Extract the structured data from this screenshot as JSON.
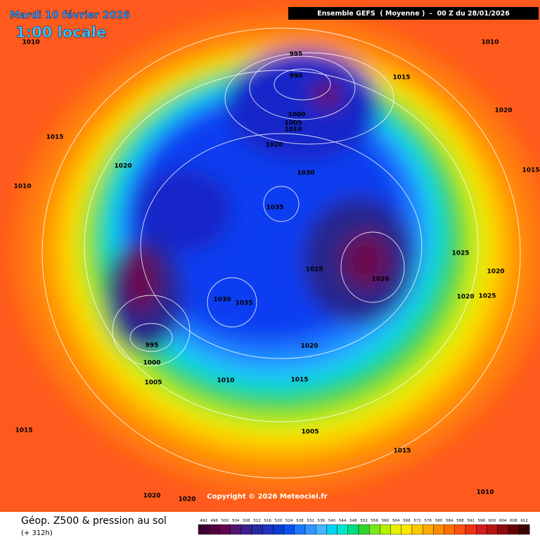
{
  "header": {
    "date": "Mardi 10 février 2026",
    "time": "1:00 locale",
    "model": "Ensemble GEFS  ( Moyenne )  -  00 Z du 28/01/2026"
  },
  "isobar_labels": [
    1010,
    995,
    990,
    1015,
    1010,
    1020,
    1000,
    1005,
    1010,
    1015,
    1020,
    1020,
    1030,
    1015,
    1010,
    1035,
    1025,
    1025,
    1020,
    1020,
    1020,
    1025,
    1030,
    1035,
    995,
    1020,
    1000,
    1005,
    1010,
    1015,
    1005,
    1015,
    1015,
    1020,
    1020,
    1010
  ],
  "copyright": "Copyright © 2026 Meteociel.fr",
  "footer": {
    "title": "Géop. Z500 & pression au sol",
    "lead": "(+ 312h)"
  },
  "colorbar": {
    "labels": [
      492,
      496,
      500,
      504,
      508,
      512,
      516,
      520,
      524,
      528,
      532,
      536,
      540,
      544,
      548,
      552,
      556,
      560,
      564,
      568,
      572,
      576,
      580,
      584,
      588,
      592,
      596,
      600,
      604,
      608,
      612
    ]
  }
}
